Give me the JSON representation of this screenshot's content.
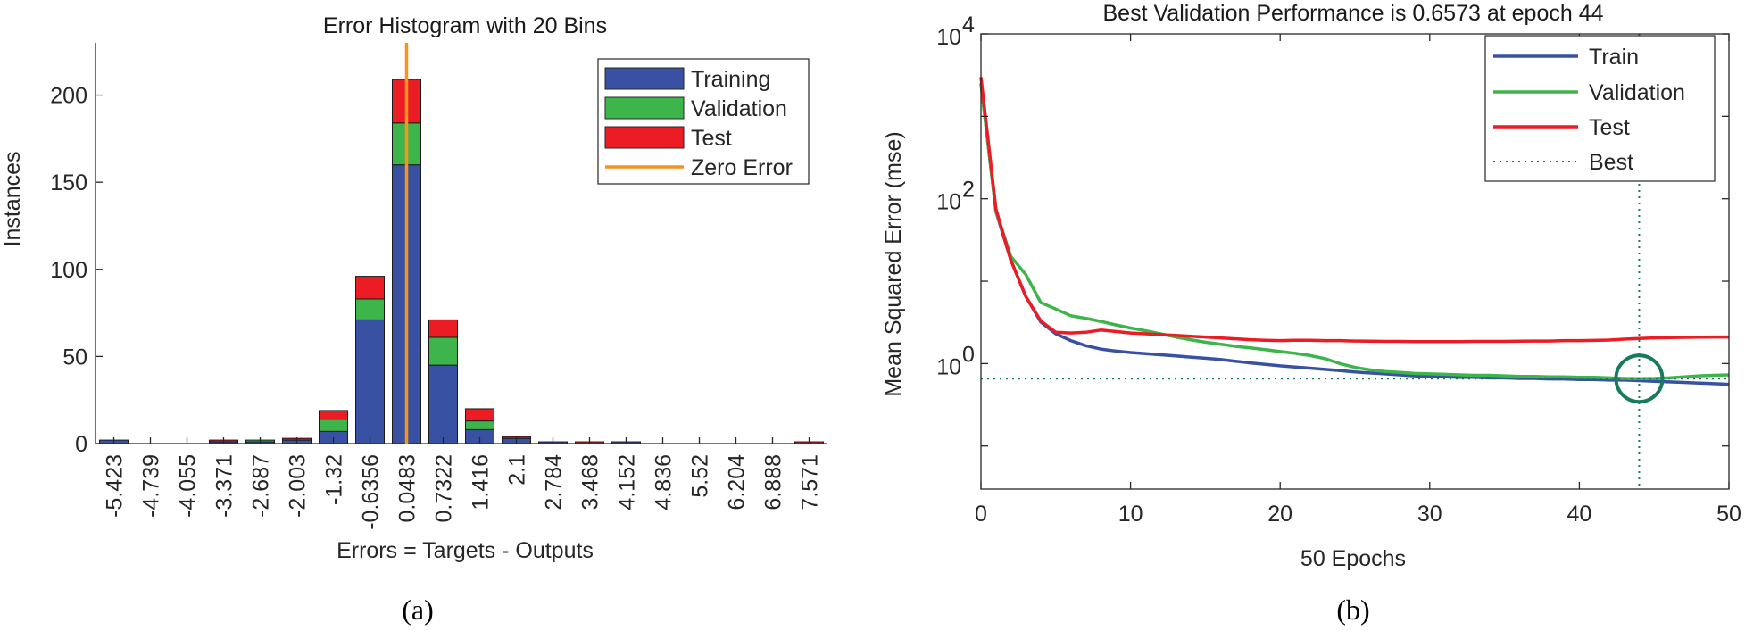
{
  "chart_data": [
    {
      "type": "bar",
      "panel_label": "(a)",
      "title": "Error Histogram with 20 Bins",
      "xlabel": "Errors = Targets - Outputs",
      "ylabel": "Instances",
      "ylim": [
        0,
        230
      ],
      "yticks": [
        0,
        50,
        100,
        150,
        200
      ],
      "categories": [
        "-5.423",
        "-4.739",
        "-4.055",
        "-3.371",
        "-2.687",
        "-2.003",
        "-1.32",
        "-0.6356",
        "0.0483",
        "0.7322",
        "1.416",
        "2.1",
        "2.784",
        "3.468",
        "4.152",
        "4.836",
        "5.52",
        "6.204",
        "6.888",
        "7.571"
      ],
      "series": [
        {
          "name": "Training",
          "color": "#3951a3",
          "values": [
            2,
            0,
            0,
            1,
            1,
            2,
            7,
            71,
            160,
            45,
            8,
            3,
            1,
            0,
            1,
            0,
            0,
            0,
            0,
            0
          ]
        },
        {
          "name": "Validation",
          "color": "#3db54a",
          "values": [
            0,
            0,
            0,
            0,
            1,
            0,
            7,
            12,
            24,
            16,
            5,
            0,
            0,
            0,
            0,
            0,
            0,
            0,
            0,
            0
          ]
        },
        {
          "name": "Test",
          "color": "#ec1c24",
          "values": [
            0,
            0,
            0,
            1,
            0,
            1,
            5,
            13,
            25,
            10,
            7,
            1,
            0,
            1,
            0,
            0,
            0,
            0,
            0,
            1
          ]
        }
      ],
      "zero_error": {
        "name": "Zero Error",
        "color": "#f7941d",
        "category": "0.0483"
      },
      "legend": [
        "Training",
        "Validation",
        "Test",
        "Zero Error"
      ],
      "legend_position": "top-right"
    },
    {
      "type": "line",
      "panel_label": "(b)",
      "title": "Best Validation Performance is 0.6573 at epoch 44",
      "xlabel": "50 Epochs",
      "ylabel": "Mean Squared Error  (mse)",
      "yscale": "log",
      "xlim": [
        0,
        50
      ],
      "ylim": [
        0.03,
        10000
      ],
      "xticks": [
        0,
        10,
        20,
        30,
        40,
        50
      ],
      "yticks": [
        {
          "value": 1,
          "base": "10",
          "exp": "0"
        },
        {
          "value": 100,
          "base": "10",
          "exp": "2"
        },
        {
          "value": 10000,
          "base": "10",
          "exp": "4"
        }
      ],
      "x": [
        0,
        1,
        2,
        3,
        4,
        5,
        6,
        7,
        8,
        9,
        10,
        11,
        12,
        13,
        14,
        15,
        16,
        17,
        18,
        19,
        20,
        21,
        22,
        23,
        24,
        25,
        26,
        27,
        28,
        29,
        30,
        31,
        32,
        33,
        34,
        35,
        36,
        37,
        38,
        39,
        40,
        41,
        42,
        43,
        44,
        45,
        46,
        47,
        48,
        49,
        50
      ],
      "series": [
        {
          "name": "Train",
          "color": "#3951a3",
          "values": [
            2500,
            70,
            18,
            6.5,
            3.2,
            2.3,
            1.9,
            1.65,
            1.5,
            1.42,
            1.36,
            1.32,
            1.28,
            1.24,
            1.2,
            1.16,
            1.12,
            1.07,
            1.02,
            0.98,
            0.94,
            0.91,
            0.88,
            0.85,
            0.82,
            0.79,
            0.77,
            0.75,
            0.73,
            0.71,
            0.7,
            0.69,
            0.68,
            0.68,
            0.67,
            0.67,
            0.66,
            0.66,
            0.65,
            0.65,
            0.64,
            0.64,
            0.63,
            0.63,
            0.62,
            0.61,
            0.6,
            0.59,
            0.58,
            0.57,
            0.56
          ]
        },
        {
          "name": "Validation",
          "color": "#3db54a",
          "values": [
            2500,
            70,
            20,
            12,
            5.5,
            4.6,
            3.8,
            3.55,
            3.25,
            2.95,
            2.7,
            2.5,
            2.3,
            2.1,
            1.95,
            1.82,
            1.72,
            1.62,
            1.55,
            1.48,
            1.4,
            1.33,
            1.25,
            1.15,
            1.0,
            0.9,
            0.84,
            0.8,
            0.78,
            0.76,
            0.75,
            0.74,
            0.73,
            0.72,
            0.72,
            0.71,
            0.7,
            0.7,
            0.69,
            0.69,
            0.68,
            0.68,
            0.67,
            0.66,
            0.6573,
            0.66,
            0.67,
            0.69,
            0.71,
            0.72,
            0.73
          ]
        },
        {
          "name": "Test",
          "color": "#ec1c24",
          "values": [
            3000,
            75,
            18,
            6.5,
            3.3,
            2.4,
            2.35,
            2.4,
            2.55,
            2.45,
            2.35,
            2.3,
            2.25,
            2.2,
            2.15,
            2.1,
            2.05,
            2.0,
            1.95,
            1.92,
            1.9,
            1.92,
            1.92,
            1.9,
            1.9,
            1.88,
            1.87,
            1.86,
            1.86,
            1.85,
            1.85,
            1.85,
            1.85,
            1.86,
            1.86,
            1.86,
            1.87,
            1.88,
            1.88,
            1.9,
            1.9,
            1.91,
            1.93,
            1.98,
            2.02,
            2.05,
            2.07,
            2.08,
            2.09,
            2.1,
            2.1
          ]
        }
      ],
      "best": {
        "name": "Best",
        "color": "#1a7a5e",
        "epoch": 44,
        "value": 0.6573
      },
      "legend": [
        "Train",
        "Validation",
        "Test",
        "Best"
      ],
      "legend_position": "top-right"
    }
  ]
}
